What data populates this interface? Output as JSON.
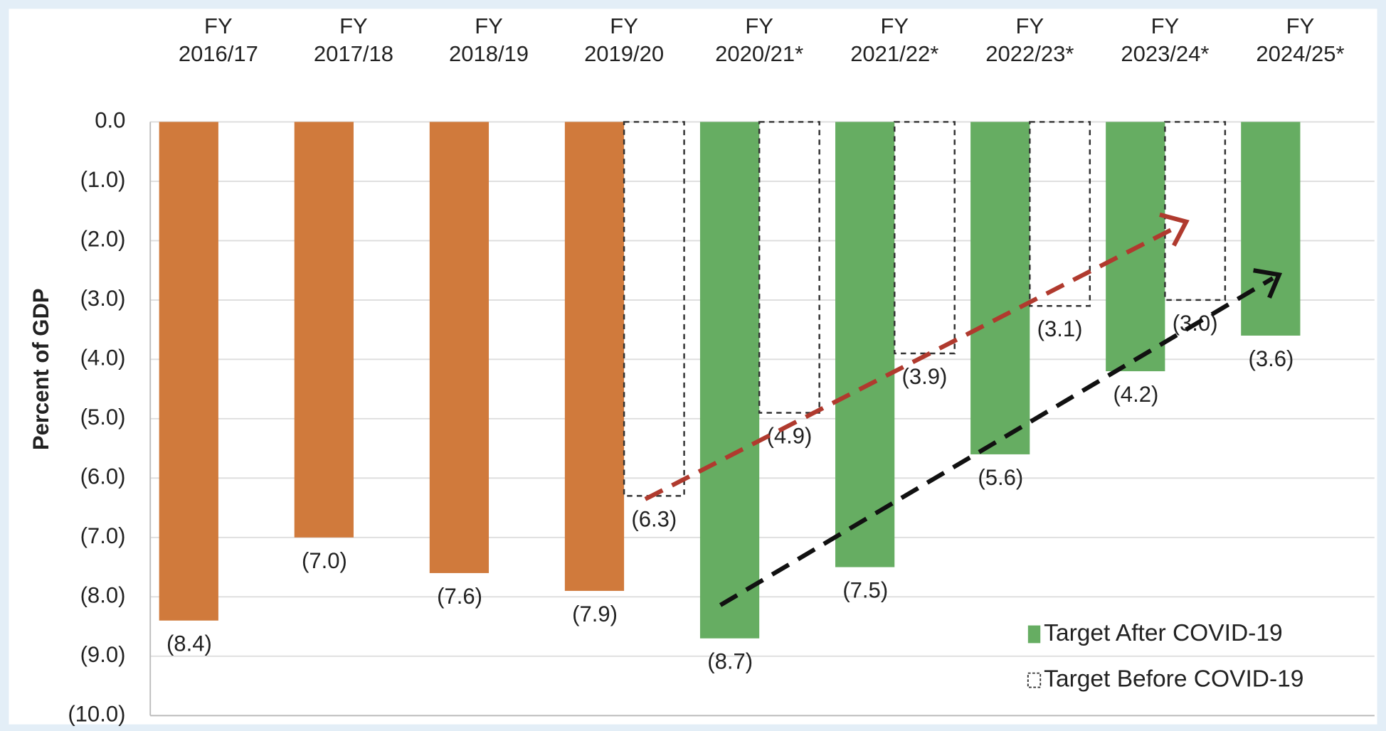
{
  "chart_data": {
    "type": "bar",
    "y_label": "Percent of GDP",
    "categories": [
      "FY 2016/17",
      "FY 2017/18",
      "FY 2018/19",
      "FY 2019/20",
      "FY 2020/21*",
      "FY 2021/22*",
      "FY 2022/23*",
      "FY 2023/24*",
      "FY 2024/25*"
    ],
    "series": [
      {
        "color": "#d07a3c",
        "style": "solid",
        "values": [
          -8.4,
          -7.0,
          -7.6,
          -7.9,
          null,
          null,
          null,
          null,
          null
        ],
        "value_labels": [
          "(8.4)",
          "(7.0)",
          "(7.6)",
          "(7.9)",
          null,
          null,
          null,
          null,
          null
        ]
      },
      {
        "name": "Target After COVID-19",
        "color": "#66ad62",
        "style": "solid",
        "values": [
          null,
          null,
          null,
          null,
          -8.7,
          -7.5,
          -5.6,
          -4.2,
          -3.6
        ],
        "value_labels": [
          null,
          null,
          null,
          null,
          "(8.7)",
          "(7.5)",
          "(5.6)",
          "(4.2)",
          "(3.6)"
        ]
      },
      {
        "name": "Target Before COVID-19",
        "color": "#333333",
        "style": "dashed",
        "values": [
          null,
          null,
          null,
          -6.3,
          -4.9,
          -3.9,
          -3.1,
          -3.0,
          null
        ],
        "value_labels": [
          null,
          null,
          null,
          "(6.3)",
          "(4.9)",
          "(3.9)",
          "(3.1)",
          "(3.0)",
          null
        ]
      }
    ],
    "ylim": [
      0,
      -10
    ],
    "yticks": [
      {
        "value": 0,
        "label": "0.0"
      },
      {
        "value": -1,
        "label": "(1.0)"
      },
      {
        "value": -2,
        "label": "(2.0)"
      },
      {
        "value": -3,
        "label": "(3.0)"
      },
      {
        "value": -4,
        "label": "(4.0)"
      },
      {
        "value": -5,
        "label": "(5.0)"
      },
      {
        "value": -6,
        "label": "(6.0)"
      },
      {
        "value": -7,
        "label": "(7.0)"
      },
      {
        "value": -8,
        "label": "(8.0)"
      },
      {
        "value": -9,
        "label": "(9.0)"
      },
      {
        "value": -10,
        "label": "(10.0)"
      }
    ],
    "grid": true,
    "legend": "lower right"
  }
}
